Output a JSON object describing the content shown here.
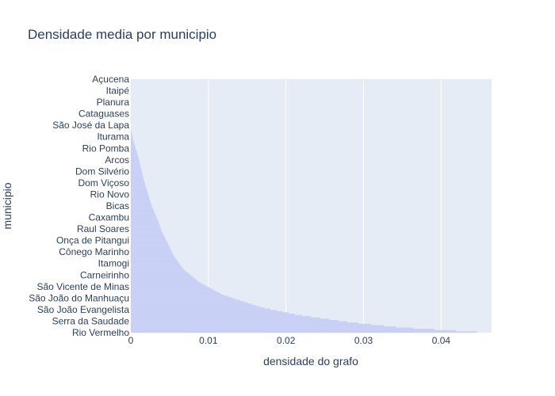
{
  "chart_data": {
    "type": "bar",
    "orientation": "horizontal",
    "title": "Densidade media por municipio",
    "xlabel": "densidade do grafo",
    "ylabel": "municipio",
    "xlim": [
      0,
      0.0465
    ],
    "x_ticks": [
      "0",
      "0.01",
      "0.02",
      "0.03",
      "0.04"
    ],
    "x_tick_values": [
      0,
      0.01,
      0.02,
      0.03,
      0.04
    ],
    "grid": true,
    "colors": {
      "bar": "#c9d0f5",
      "plot_bg": "#e5ecf6",
      "grid": "#ffffff",
      "text": "#2a3f5f"
    },
    "y_tick_labels": [
      "Açucena",
      "Itaipé",
      "Planura",
      "Cataguases",
      "São José da Lapa",
      "Iturama",
      "Rio Pomba",
      "Arcos",
      "Dom Silvério",
      "Dom Viçoso",
      "Rio Novo",
      "Bicas",
      "Caxambu",
      "Raul Soares",
      "Onça de Pitangui",
      "Cônego Marinho",
      "Itamogi",
      "Carneirinho",
      "São Vicente de Minas",
      "São João do Manhuaçu",
      "São João Evangelista",
      "Serra da Saudade",
      "Rio Vermelho"
    ],
    "series": [
      {
        "profile_rank_fraction": [
          0,
          0.2,
          0.25,
          0.3,
          0.35,
          0.4,
          0.45,
          0.5,
          0.55,
          0.6,
          0.65,
          0.7,
          0.75,
          0.8,
          0.85,
          0.9,
          0.93,
          0.96,
          0.98,
          1.0
        ],
        "profile_values": [
          0,
          0,
          0.0004,
          0.0009,
          0.0013,
          0.0017,
          0.0022,
          0.0027,
          0.0034,
          0.004,
          0.0048,
          0.0056,
          0.0068,
          0.0088,
          0.0118,
          0.0168,
          0.0215,
          0.0285,
          0.035,
          0.046
        ]
      }
    ]
  }
}
